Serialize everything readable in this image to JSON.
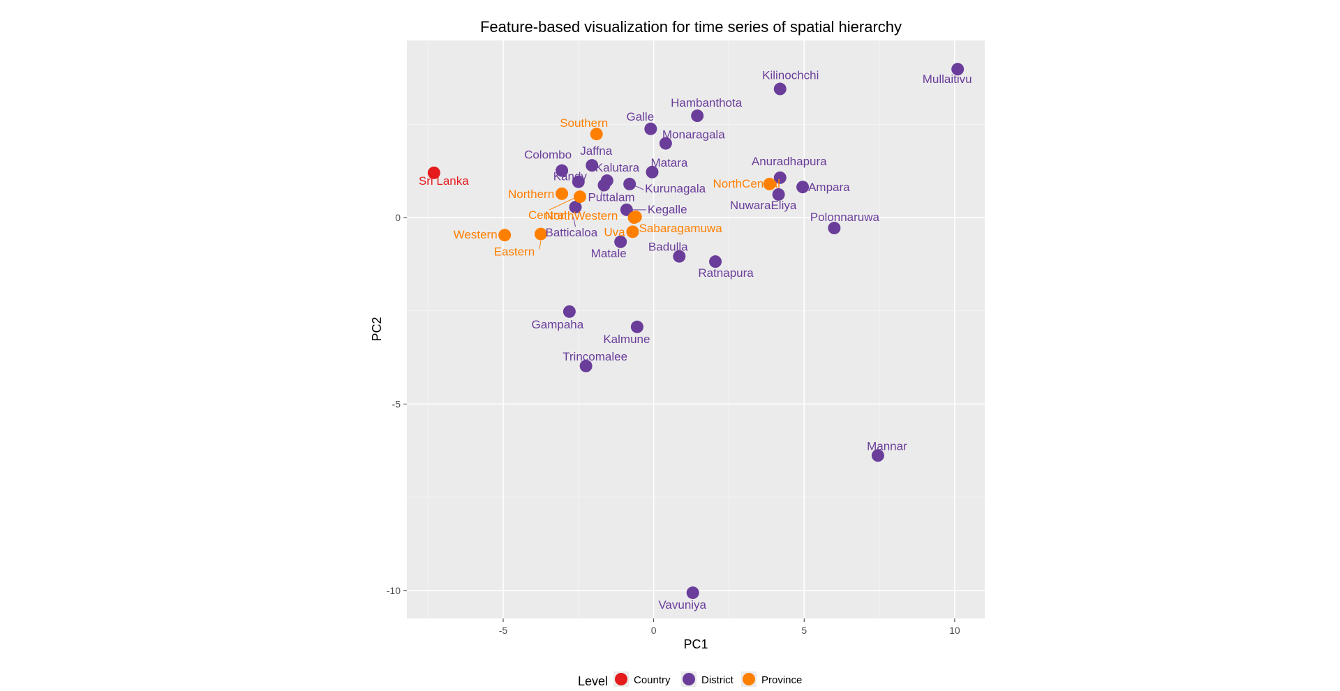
{
  "colors": {
    "Country": "#e41a1c",
    "District": "#6a3d9a",
    "Province": "#ff7f00",
    "panel_bg": "#ebebeb",
    "grid_major": "#ffffff",
    "grid_minor": "#f4f4f4"
  },
  "chart_data": {
    "type": "scatter",
    "title": "Feature-based visualization for time series of spatial hierarchy",
    "xlabel": "PC1",
    "ylabel": "PC2",
    "xlim": [
      -8.2,
      11.0
    ],
    "ylim": [
      -10.75,
      4.75
    ],
    "xticks": [
      -5,
      0,
      5,
      10
    ],
    "yticks": [
      -10,
      -5,
      0
    ],
    "grid": true,
    "legend": {
      "title": "Level",
      "position": "bottom",
      "entries": [
        "Country",
        "District",
        "Province"
      ]
    },
    "points": [
      {
        "label": "Sri Lanka",
        "level": "Country",
        "x": -7.3,
        "y": 1.2
      },
      {
        "label": "Mullaitivu",
        "level": "District",
        "x": 10.1,
        "y": 3.98
      },
      {
        "label": "Kilinochchi",
        "level": "District",
        "x": 4.2,
        "y": 3.45
      },
      {
        "label": "Hambanthota",
        "level": "District",
        "x": 1.45,
        "y": 2.73
      },
      {
        "label": "Galle",
        "level": "District",
        "x": -0.1,
        "y": 2.38
      },
      {
        "label": "Monaragala",
        "level": "District",
        "x": 0.4,
        "y": 1.99
      },
      {
        "label": "Matara",
        "level": "District",
        "x": -0.05,
        "y": 1.22
      },
      {
        "label": "Jaffna",
        "level": "District",
        "x": -2.05,
        "y": 1.4
      },
      {
        "label": "Colombo",
        "level": "District",
        "x": -3.05,
        "y": 1.26
      },
      {
        "label": "Kalutara",
        "level": "District",
        "x": -1.55,
        "y": 0.99
      },
      {
        "label": "Kandy",
        "level": "District",
        "x": -2.5,
        "y": 0.96
      },
      {
        "label": "Kurunagala",
        "level": "District",
        "x": -0.8,
        "y": 0.9
      },
      {
        "label": "Puttalam",
        "level": "District",
        "x": -1.65,
        "y": 0.87
      },
      {
        "label": "Anuradhapura",
        "level": "District",
        "x": 4.2,
        "y": 1.07
      },
      {
        "label": "Ampara",
        "level": "District",
        "x": 4.95,
        "y": 0.82
      },
      {
        "label": "NuwaraEliya",
        "level": "District",
        "x": 4.15,
        "y": 0.62
      },
      {
        "label": "Kegalle",
        "level": "District",
        "x": -0.9,
        "y": 0.21
      },
      {
        "label": "Batticaloa",
        "level": "District",
        "x": -2.6,
        "y": 0.28
      },
      {
        "label": "Polonnaruwa",
        "level": "District",
        "x": 6.0,
        "y": -0.28
      },
      {
        "label": "Matale",
        "level": "District",
        "x": -1.1,
        "y": -0.65
      },
      {
        "label": "Badulla",
        "level": "District",
        "x": 0.85,
        "y": -1.04
      },
      {
        "label": "Ratnapura",
        "level": "District",
        "x": 2.05,
        "y": -1.18
      },
      {
        "label": "Gampaha",
        "level": "District",
        "x": -2.8,
        "y": -2.52
      },
      {
        "label": "Kalmune",
        "level": "District",
        "x": -0.55,
        "y": -2.93
      },
      {
        "label": "Trincomalee",
        "level": "District",
        "x": -2.25,
        "y": -3.98
      },
      {
        "label": "Mannar",
        "level": "District",
        "x": 7.45,
        "y": -6.38
      },
      {
        "label": "Vavuniya",
        "level": "District",
        "x": 1.3,
        "y": -10.06
      },
      {
        "label": "Southern",
        "level": "Province",
        "x": -1.9,
        "y": 2.24
      },
      {
        "label": "Northern",
        "level": "Province",
        "x": -3.05,
        "y": 0.64
      },
      {
        "label": "Central",
        "level": "Province",
        "x": -2.45,
        "y": 0.56
      },
      {
        "label": "NorthWestern",
        "level": "Province",
        "x": -0.6,
        "y": 0.02
      },
      {
        "label": "NorthCentral",
        "level": "Province",
        "x": 3.85,
        "y": 0.9
      },
      {
        "label": "Western",
        "level": "Province",
        "x": -4.95,
        "y": -0.47
      },
      {
        "label": "Eastern",
        "level": "Province",
        "x": -3.75,
        "y": -0.44
      },
      {
        "label": "Uva",
        "level": "Province",
        "x": -0.7,
        "y": -0.38
      },
      {
        "label": "Sabaragamuwa",
        "level": "Province",
        "x": -0.65,
        "y": 0.0
      }
    ]
  }
}
